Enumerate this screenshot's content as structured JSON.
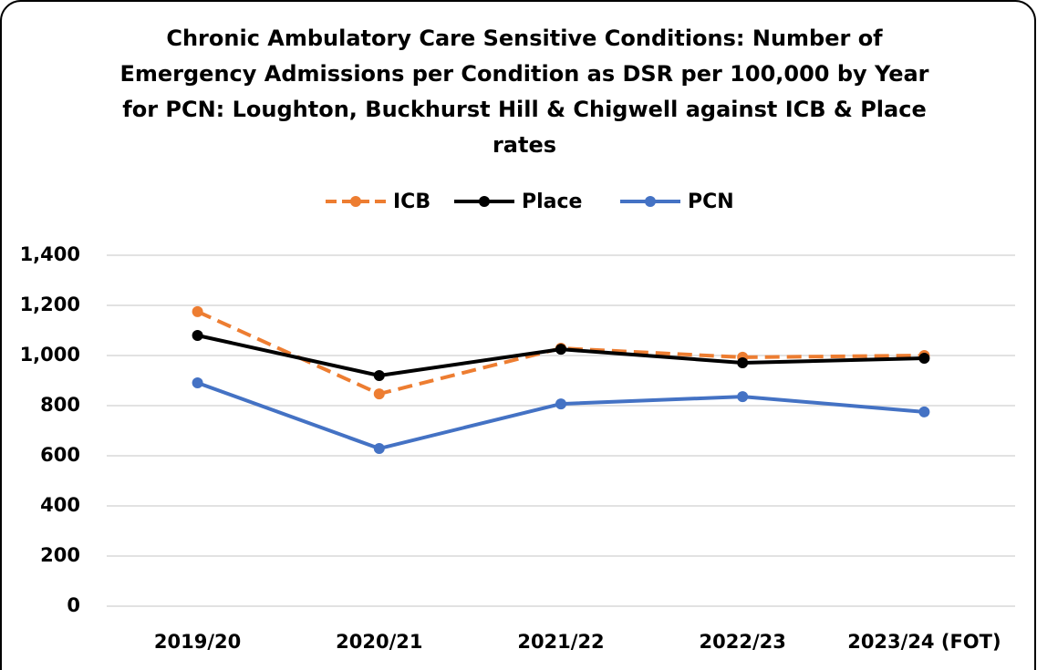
{
  "chart_data": {
    "type": "line",
    "title": [
      "Chronic Ambulatory Care Sensitive Conditions: Number of",
      "Emergency Admissions per Condition as DSR per 100,000 by Year",
      "for PCN: Loughton, Buckhurst Hill & Chigwell against ICB & Place",
      "rates"
    ],
    "categories": [
      "2019/20",
      "2020/21",
      "2021/22",
      "2022/23",
      "2023/24 (FOT)"
    ],
    "series": [
      {
        "name": "ICB",
        "color": "#ED7D31",
        "dashed": true,
        "values": [
          1175,
          847,
          1029,
          993,
          1000
        ]
      },
      {
        "name": "Place",
        "color": "#000000",
        "dashed": false,
        "values": [
          1080,
          920,
          1025,
          971,
          989
        ]
      },
      {
        "name": "PCN",
        "color": "#4472C4",
        "dashed": false,
        "values": [
          891,
          629,
          807,
          836,
          775
        ]
      }
    ],
    "ylim": [
      0,
      1400
    ],
    "yticks": [
      0,
      200,
      400,
      600,
      800,
      {
        "value": 1000,
        "label": "1,000"
      },
      {
        "value": 1200,
        "label": "1,200"
      },
      {
        "value": 1400,
        "label": "1,400"
      }
    ],
    "grid": true,
    "legend": "top"
  }
}
